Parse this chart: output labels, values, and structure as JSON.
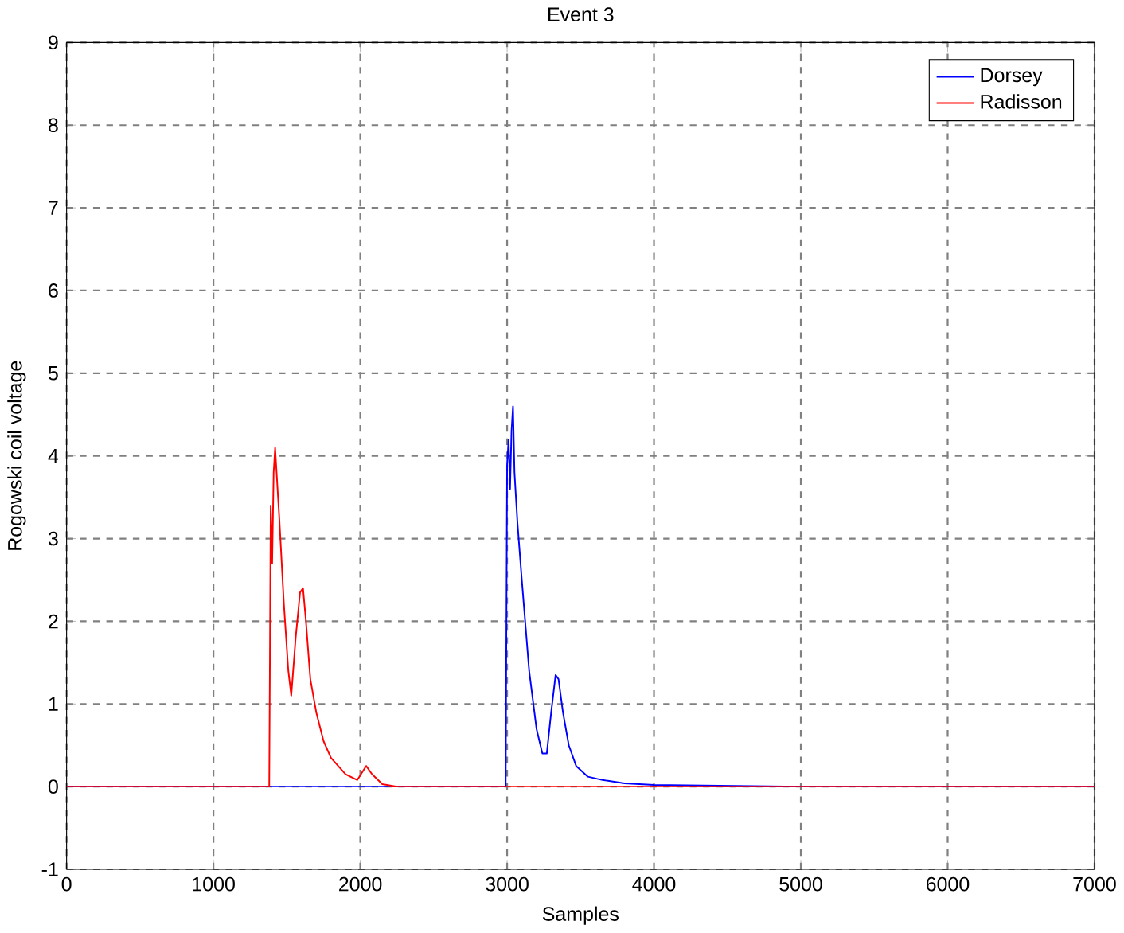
{
  "chart_data": {
    "type": "line",
    "title": "Event 3",
    "xlabel": "Samples",
    "ylabel": "Rogowski coil voltage",
    "xlim": [
      0,
      7000
    ],
    "ylim": [
      -1,
      9
    ],
    "xticks": [
      0,
      1000,
      2000,
      3000,
      4000,
      5000,
      6000,
      7000
    ],
    "yticks": [
      -1,
      0,
      1,
      2,
      3,
      4,
      5,
      6,
      7,
      8,
      9
    ],
    "grid": true,
    "legend": "top right",
    "series": [
      {
        "name": "Dorsey",
        "color": "#0000ff",
        "x": [
          0,
          1000,
          2000,
          2990,
          3000,
          3010,
          3020,
          3030,
          3040,
          3050,
          3070,
          3100,
          3150,
          3200,
          3240,
          3270,
          3300,
          3330,
          3350,
          3380,
          3420,
          3470,
          3550,
          3650,
          3800,
          4000,
          5000,
          6000,
          7000
        ],
        "values": [
          0,
          0,
          0,
          0,
          3.9,
          4.2,
          3.6,
          4.3,
          4.6,
          3.8,
          3.2,
          2.5,
          1.4,
          0.7,
          0.4,
          0.4,
          0.9,
          1.35,
          1.3,
          0.9,
          0.5,
          0.25,
          0.12,
          0.08,
          0.04,
          0.02,
          0,
          0,
          0
        ]
      },
      {
        "name": "Radisson",
        "color": "#ff0000",
        "x": [
          0,
          1000,
          1370,
          1380,
          1390,
          1400,
          1410,
          1420,
          1430,
          1450,
          1480,
          1510,
          1530,
          1560,
          1590,
          1610,
          1630,
          1660,
          1700,
          1750,
          1800,
          1900,
          1980,
          2040,
          2080,
          2150,
          2250,
          3000,
          4000,
          5000,
          6000,
          7000
        ],
        "values": [
          0,
          0,
          0,
          0,
          3.4,
          2.7,
          3.8,
          4.1,
          3.8,
          3.2,
          2.2,
          1.4,
          1.1,
          1.8,
          2.35,
          2.4,
          2.0,
          1.3,
          0.9,
          0.55,
          0.35,
          0.15,
          0.08,
          0.25,
          0.15,
          0.03,
          0,
          0,
          0,
          0,
          0,
          0
        ]
      }
    ]
  }
}
